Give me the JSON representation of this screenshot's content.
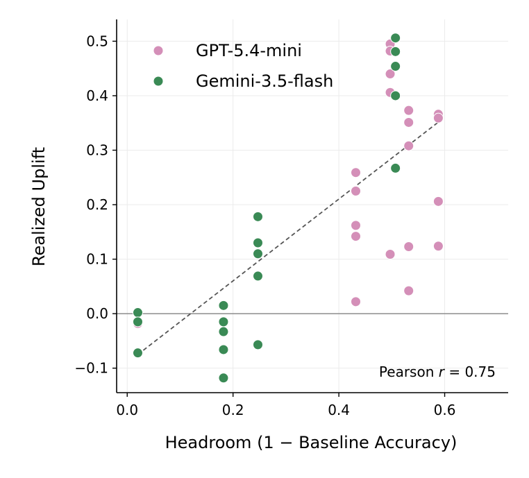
{
  "chart_data": {
    "type": "scatter",
    "xlabel": "Headroom (1 − Baseline Accuracy)",
    "ylabel": "Realized Uplift",
    "xlim": [
      -0.02,
      0.72
    ],
    "ylim": [
      -0.145,
      0.54
    ],
    "xticks": [
      0.0,
      0.2,
      0.4,
      0.6
    ],
    "xtick_labels": [
      "0.0",
      "0.2",
      "0.4",
      "0.6"
    ],
    "yticks": [
      -0.1,
      0.0,
      0.1,
      0.2,
      0.3,
      0.4,
      0.5
    ],
    "ytick_labels": [
      "−0.1",
      "0.0",
      "0.1",
      "0.2",
      "0.3",
      "0.4",
      "0.5"
    ],
    "grid": true,
    "legend_position": "top-left",
    "annotation": {
      "prefix": "Pearson ",
      "var": "r",
      "suffix": " = 0.75"
    },
    "reference_line_y": 0.0,
    "fit_line": {
      "x": [
        0.02,
        0.59
      ],
      "y": [
        -0.075,
        0.353
      ]
    },
    "series": [
      {
        "name": "GPT-5.4-mini",
        "color": "#d48fb8",
        "points": [
          [
            0.02,
            -0.072
          ],
          [
            0.02,
            -0.018
          ],
          [
            0.432,
            0.259
          ],
          [
            0.432,
            0.225
          ],
          [
            0.432,
            0.162
          ],
          [
            0.432,
            0.142
          ],
          [
            0.432,
            0.022
          ],
          [
            0.497,
            0.495
          ],
          [
            0.497,
            0.482
          ],
          [
            0.497,
            0.44
          ],
          [
            0.497,
            0.406
          ],
          [
            0.497,
            0.109
          ],
          [
            0.532,
            0.373
          ],
          [
            0.532,
            0.351
          ],
          [
            0.532,
            0.308
          ],
          [
            0.532,
            0.123
          ],
          [
            0.532,
            0.042
          ],
          [
            0.588,
            0.366
          ],
          [
            0.588,
            0.359
          ],
          [
            0.588,
            0.206
          ],
          [
            0.588,
            0.124
          ]
        ]
      },
      {
        "name": "Gemini-3.5-flash",
        "color": "#3a8a55",
        "points": [
          [
            0.02,
            0.002
          ],
          [
            0.02,
            -0.015
          ],
          [
            0.02,
            -0.072
          ],
          [
            0.182,
            0.015
          ],
          [
            0.182,
            -0.015
          ],
          [
            0.182,
            -0.033
          ],
          [
            0.182,
            -0.066
          ],
          [
            0.182,
            -0.118
          ],
          [
            0.247,
            0.178
          ],
          [
            0.247,
            0.13
          ],
          [
            0.247,
            0.11
          ],
          [
            0.247,
            0.069
          ],
          [
            0.247,
            -0.057
          ],
          [
            0.507,
            0.506
          ],
          [
            0.507,
            0.481
          ],
          [
            0.507,
            0.454
          ],
          [
            0.507,
            0.4
          ],
          [
            0.507,
            0.267
          ]
        ]
      }
    ]
  }
}
